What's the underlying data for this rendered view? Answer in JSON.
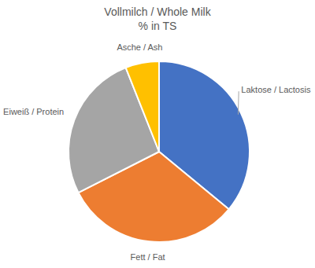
{
  "chart_data": {
    "type": "pie",
    "title": "Vollmilch / Whole Milk",
    "subtitle": "% in TS",
    "categories": [
      "Laktose / Lactosis",
      "Fett / Fat",
      "Eiweiß / Protein",
      "Asche / Ash"
    ],
    "values": [
      36,
      31.5,
      26.5,
      6
    ],
    "colors": [
      "#4472c4",
      "#ed7d31",
      "#a5a5a5",
      "#ffc000"
    ]
  }
}
